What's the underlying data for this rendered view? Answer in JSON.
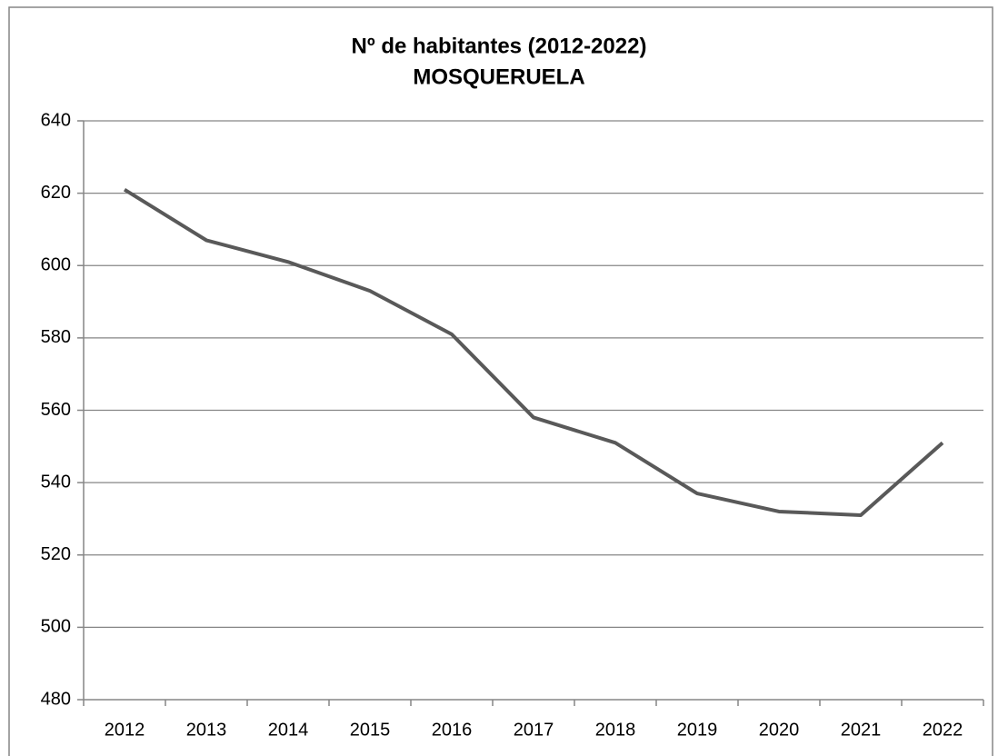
{
  "chart_data": {
    "type": "line",
    "title": "Nº de habitantes (2012-2022)",
    "subtitle": "MOSQUERUELA",
    "categories": [
      "2012",
      "2013",
      "2014",
      "2015",
      "2016",
      "2017",
      "2018",
      "2019",
      "2020",
      "2021",
      "2022"
    ],
    "values": [
      621,
      607,
      601,
      593,
      581,
      558,
      551,
      537,
      532,
      531,
      551
    ],
    "color": "#595959",
    "ylim": [
      480,
      640
    ],
    "yticks": [
      480,
      500,
      520,
      540,
      560,
      580,
      600,
      620,
      640
    ],
    "grid": true
  }
}
